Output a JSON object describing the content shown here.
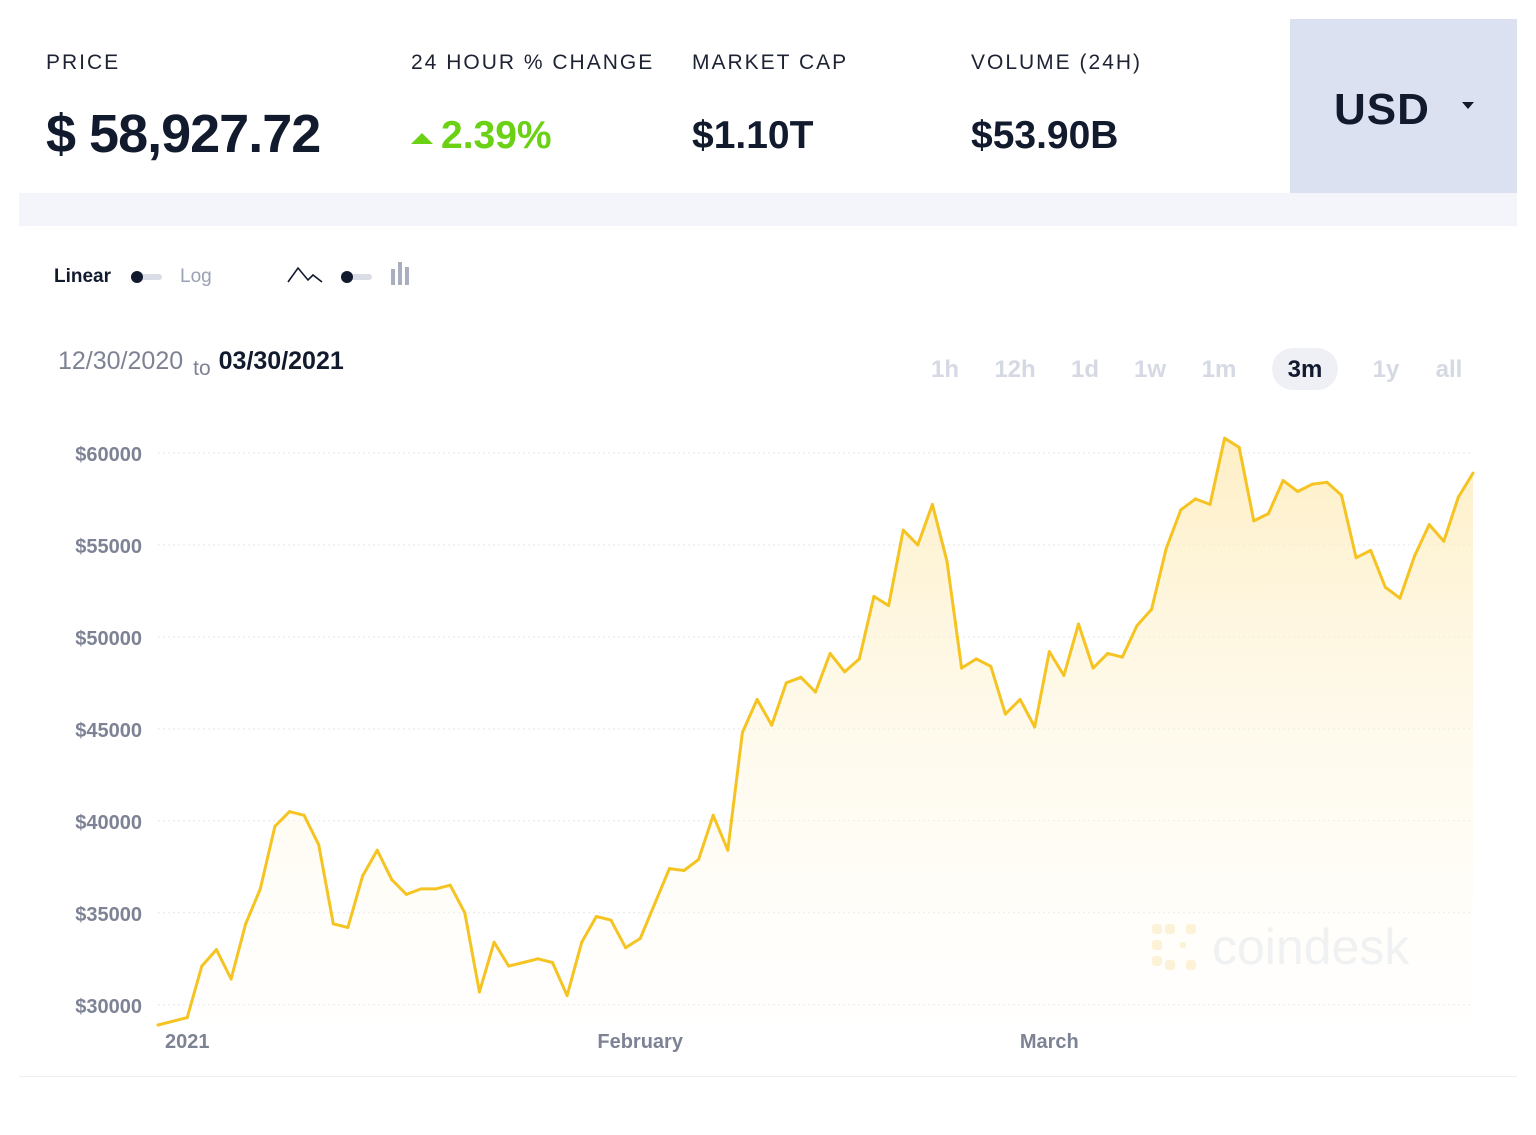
{
  "stats": {
    "price_label": "PRICE",
    "price_value": "$ 58,927.72",
    "change_label": "24 HOUR % CHANGE",
    "change_value": "2.39%",
    "market_cap_label": "MARKET CAP",
    "market_cap_value": "$1.10T",
    "volume_label": "VOLUME (24H)",
    "volume_value": "$53.90B"
  },
  "currency": {
    "selected": "USD"
  },
  "toggles": {
    "linear": "Linear",
    "log": "Log"
  },
  "daterange": {
    "start": "12/30/2020",
    "to": "to",
    "end": "03/30/2021"
  },
  "ranges": [
    {
      "label": "1h",
      "active": false
    },
    {
      "label": "12h",
      "active": false
    },
    {
      "label": "1d",
      "active": false
    },
    {
      "label": "1w",
      "active": false
    },
    {
      "label": "1m",
      "active": false
    },
    {
      "label": "3m",
      "active": true
    },
    {
      "label": "1y",
      "active": false
    },
    {
      "label": "all",
      "active": false
    }
  ],
  "watermark": "coindesk",
  "colors": {
    "line": "#f5c422",
    "up": "#6ad114",
    "currency_bg": "#dce1f1"
  },
  "chart_data": {
    "type": "area",
    "x_start": "2020-12-30",
    "x_end": "2021-03-30",
    "x_ticks": [
      {
        "label": "2021",
        "date": "2021-01-01"
      },
      {
        "label": "February",
        "date": "2021-02-01"
      },
      {
        "label": "March",
        "date": "2021-03-01"
      }
    ],
    "y_ticks": [
      30000,
      35000,
      40000,
      45000,
      50000,
      55000,
      60000
    ],
    "y_tick_labels": [
      "$30000",
      "$35000",
      "$40000",
      "$45000",
      "$50000",
      "$55000",
      "$60000"
    ],
    "ylim": [
      28900,
      60700
    ],
    "grid": true,
    "series": [
      {
        "dates": [
          "2020-12-30",
          "2020-12-31",
          "2021-01-01",
          "2021-01-02",
          "2021-01-03",
          "2021-01-04",
          "2021-01-05",
          "2021-01-06",
          "2021-01-07",
          "2021-01-08",
          "2021-01-09",
          "2021-01-10",
          "2021-01-11",
          "2021-01-12",
          "2021-01-13",
          "2021-01-14",
          "2021-01-15",
          "2021-01-16",
          "2021-01-17",
          "2021-01-18",
          "2021-01-19",
          "2021-01-20",
          "2021-01-21",
          "2021-01-22",
          "2021-01-23",
          "2021-01-24",
          "2021-01-25",
          "2021-01-26",
          "2021-01-27",
          "2021-01-28",
          "2021-01-29",
          "2021-01-30",
          "2021-01-31",
          "2021-02-01",
          "2021-02-02",
          "2021-02-03",
          "2021-02-04",
          "2021-02-05",
          "2021-02-06",
          "2021-02-07",
          "2021-02-08",
          "2021-02-09",
          "2021-02-10",
          "2021-02-11",
          "2021-02-12",
          "2021-02-13",
          "2021-02-14",
          "2021-02-15",
          "2021-02-16",
          "2021-02-17",
          "2021-02-18",
          "2021-02-19",
          "2021-02-20",
          "2021-02-21",
          "2021-02-22",
          "2021-02-23",
          "2021-02-24",
          "2021-02-25",
          "2021-02-26",
          "2021-02-27",
          "2021-02-28",
          "2021-03-01",
          "2021-03-02",
          "2021-03-03",
          "2021-03-04",
          "2021-03-05",
          "2021-03-06",
          "2021-03-07",
          "2021-03-08",
          "2021-03-09",
          "2021-03-10",
          "2021-03-11",
          "2021-03-12",
          "2021-03-13",
          "2021-03-14",
          "2021-03-15",
          "2021-03-16",
          "2021-03-17",
          "2021-03-18",
          "2021-03-19",
          "2021-03-20",
          "2021-03-21",
          "2021-03-22",
          "2021-03-23",
          "2021-03-24",
          "2021-03-25",
          "2021-03-26",
          "2021-03-27",
          "2021-03-28",
          "2021-03-29",
          "2021-03-30"
        ],
        "values": [
          28900,
          29100,
          29300,
          32100,
          33000,
          31400,
          34400,
          36300,
          39700,
          40500,
          40300,
          38700,
          34400,
          34200,
          37000,
          38400,
          36800,
          36000,
          36300,
          36300,
          36500,
          35000,
          30700,
          33400,
          32100,
          32300,
          32500,
          32300,
          30500,
          33400,
          34800,
          34600,
          33100,
          33600,
          35500,
          37400,
          37300,
          37900,
          40300,
          38400,
          44800,
          46600,
          45200,
          47500,
          47800,
          47000,
          49100,
          48100,
          48800,
          52200,
          51700,
          55800,
          55000,
          57200,
          54100,
          48300,
          48800,
          48400,
          45800,
          46600,
          45100,
          49200,
          47900,
          50700,
          48300,
          49100,
          48900,
          50600,
          51500,
          54800,
          56900,
          57500,
          57200,
          60800,
          60300,
          56300,
          56700,
          58500,
          57900,
          58300,
          58400,
          57700,
          54300,
          54700,
          52700,
          52100,
          54400,
          56100,
          55200,
          57600,
          58900
        ]
      }
    ]
  }
}
